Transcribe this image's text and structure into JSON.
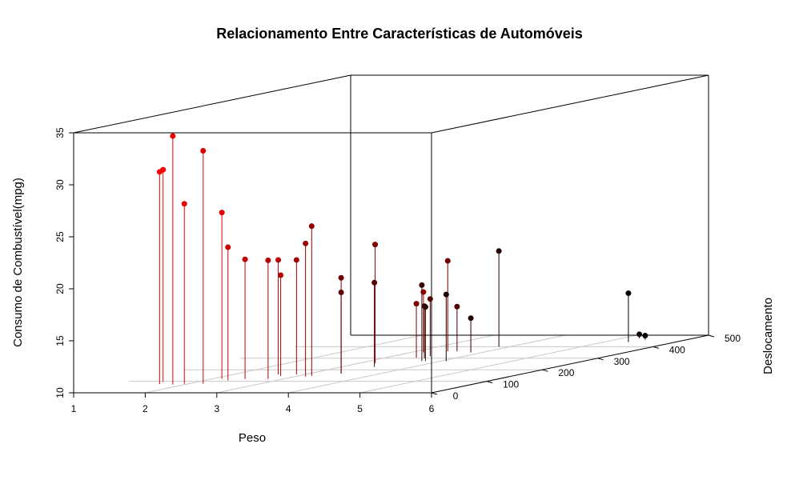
{
  "chart_data": {
    "type": "scatter3d",
    "title": "Relacionamento Entre Características de Automóveis",
    "xlabel": "Peso",
    "ylabel": "Deslocamento",
    "zlabel": "Consumo de Combustível(mpg)",
    "x_ticks": [
      "1",
      "2",
      "3",
      "4",
      "5",
      "6"
    ],
    "y_ticks": [
      "0",
      "100",
      "200",
      "300",
      "400",
      "500"
    ],
    "z_ticks": [
      "10",
      "15",
      "20",
      "25",
      "30",
      "35"
    ],
    "xlim": [
      1,
      6
    ],
    "ylim": [
      0,
      500
    ],
    "zlim": [
      10,
      35
    ],
    "point_style": "filled circles with vertical drop lines, color from red (light) to black (heavy)",
    "grid": "floor only",
    "points": [
      {
        "wt": 2.62,
        "disp": 160,
        "mpg": 21.0
      },
      {
        "wt": 2.875,
        "disp": 160,
        "mpg": 21.0
      },
      {
        "wt": 2.32,
        "disp": 108,
        "mpg": 22.8
      },
      {
        "wt": 3.215,
        "disp": 258,
        "mpg": 21.4
      },
      {
        "wt": 3.44,
        "disp": 360,
        "mpg": 18.7
      },
      {
        "wt": 3.46,
        "disp": 225,
        "mpg": 18.1
      },
      {
        "wt": 3.57,
        "disp": 360,
        "mpg": 14.3
      },
      {
        "wt": 3.19,
        "disp": 146.7,
        "mpg": 24.4
      },
      {
        "wt": 3.15,
        "disp": 140.8,
        "mpg": 22.8
      },
      {
        "wt": 3.44,
        "disp": 167.6,
        "mpg": 19.2
      },
      {
        "wt": 3.44,
        "disp": 167.6,
        "mpg": 17.8
      },
      {
        "wt": 4.07,
        "disp": 275.8,
        "mpg": 16.4
      },
      {
        "wt": 3.73,
        "disp": 275.8,
        "mpg": 17.3
      },
      {
        "wt": 3.78,
        "disp": 275.8,
        "mpg": 15.2
      },
      {
        "wt": 5.25,
        "disp": 472,
        "mpg": 10.4
      },
      {
        "wt": 5.424,
        "disp": 460,
        "mpg": 10.4
      },
      {
        "wt": 5.345,
        "disp": 440,
        "mpg": 14.7
      },
      {
        "wt": 2.2,
        "disp": 78.7,
        "mpg": 32.4
      },
      {
        "wt": 1.615,
        "disp": 75.7,
        "mpg": 30.4
      },
      {
        "wt": 1.835,
        "disp": 71.1,
        "mpg": 33.9
      },
      {
        "wt": 2.465,
        "disp": 120.1,
        "mpg": 21.5
      },
      {
        "wt": 3.52,
        "disp": 318,
        "mpg": 15.5
      },
      {
        "wt": 3.435,
        "disp": 304,
        "mpg": 15.2
      },
      {
        "wt": 3.84,
        "disp": 350,
        "mpg": 13.3
      },
      {
        "wt": 3.845,
        "disp": 400,
        "mpg": 19.2
      },
      {
        "wt": 1.935,
        "disp": 79,
        "mpg": 27.3
      },
      {
        "wt": 2.14,
        "disp": 120.3,
        "mpg": 26.0
      },
      {
        "wt": 1.513,
        "disp": 95.1,
        "mpg": 30.4
      },
      {
        "wt": 3.17,
        "disp": 351,
        "mpg": 15.8
      },
      {
        "wt": 2.77,
        "disp": 145,
        "mpg": 19.7
      },
      {
        "wt": 3.57,
        "disp": 301,
        "mpg": 15.0
      },
      {
        "wt": 2.78,
        "disp": 121,
        "mpg": 21.4
      }
    ]
  }
}
